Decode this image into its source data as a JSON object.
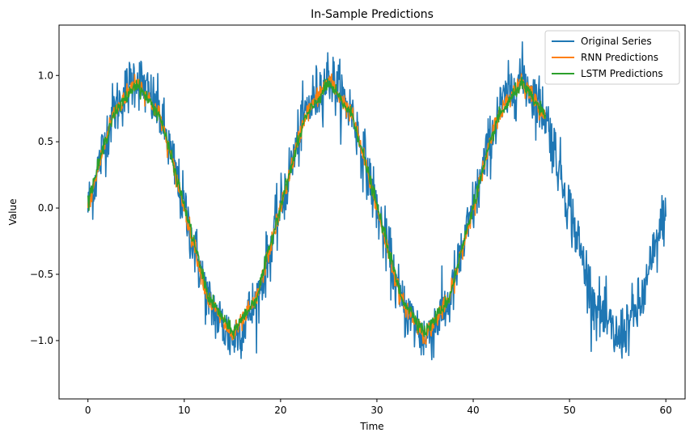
{
  "chart_data": {
    "type": "line",
    "title": "In-Sample Predictions",
    "xlabel": "Time",
    "ylabel": "Value",
    "xlim": [
      -3,
      62
    ],
    "ylim": [
      -1.44,
      1.38
    ],
    "xticks": [
      0,
      10,
      20,
      30,
      40,
      50,
      60
    ],
    "yticks": [
      -1.0,
      -0.5,
      0.0,
      0.5,
      1.0
    ],
    "xtick_labels": [
      "0",
      "10",
      "20",
      "30",
      "40",
      "50",
      "60"
    ],
    "ytick_labels": [
      "−1.0",
      "−0.5",
      "0.0",
      "0.5",
      "1.0"
    ],
    "grid": false,
    "legend_position": "top-right",
    "series": [
      {
        "name": "Original Series",
        "color": "#1f77b4",
        "x": [
          0,
          2.5,
          5,
          7.5,
          10,
          12.5,
          15,
          17.5,
          20,
          22.5,
          25,
          27.5,
          30,
          32.5,
          35,
          37.5,
          40,
          42.5,
          45,
          47.5,
          50,
          52.5,
          55,
          57.5,
          60
        ],
        "y": [
          0.0,
          0.71,
          1.0,
          0.71,
          0.0,
          -0.71,
          -1.0,
          -0.71,
          0.0,
          0.71,
          1.0,
          0.71,
          0.0,
          -0.71,
          -1.0,
          -0.71,
          0.0,
          0.71,
          1.0,
          0.71,
          0.0,
          -0.71,
          -1.0,
          -0.71,
          0.0
        ]
      },
      {
        "name": "RNN Predictions",
        "color": "#ff7f0e",
        "x": [
          0,
          2.5,
          5,
          7.5,
          10,
          12.5,
          15,
          17.5,
          20,
          22.5,
          25,
          27.5,
          30,
          32.5,
          35,
          37.5,
          40,
          42.5,
          45,
          47.5
        ],
        "y": [
          0.0,
          0.69,
          0.97,
          0.69,
          0.0,
          -0.69,
          -0.97,
          -0.69,
          0.0,
          0.69,
          0.97,
          0.69,
          0.0,
          -0.69,
          -0.97,
          -0.69,
          0.0,
          0.69,
          0.97,
          0.69
        ]
      },
      {
        "name": "LSTM Predictions",
        "color": "#2ca02c",
        "x": [
          0,
          2.5,
          5,
          7.5,
          10,
          12.5,
          15,
          17.5,
          20,
          22.5,
          25,
          27.5,
          30,
          32.5,
          35,
          37.5,
          40,
          42.5,
          45,
          47.5
        ],
        "y": [
          0.05,
          0.68,
          0.94,
          0.69,
          0.02,
          -0.67,
          -0.94,
          -0.68,
          0.02,
          0.67,
          0.94,
          0.69,
          0.02,
          -0.67,
          -0.94,
          -0.68,
          0.02,
          0.67,
          0.94,
          0.69
        ]
      }
    ]
  }
}
